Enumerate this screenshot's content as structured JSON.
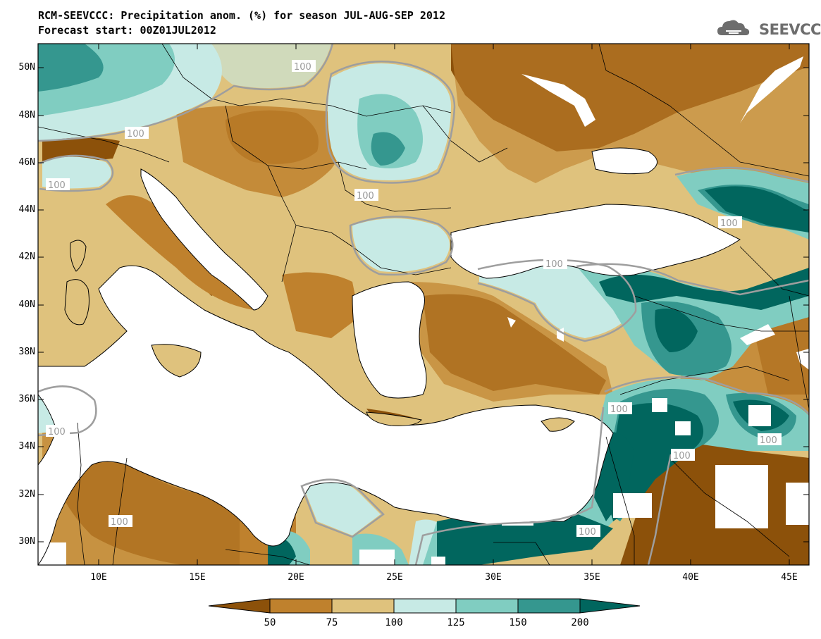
{
  "title_line1": "RCM-SEEVCCC: Precipitation anom. (%) for season JUL-AUG-SEP 2012",
  "title_line2": "Forecast start: 00Z01JUL2012",
  "logo": {
    "text": "SEEVCCC",
    "icon": "cloud-icon"
  },
  "map": {
    "lat_labels": [
      "50N",
      "48N",
      "46N",
      "44N",
      "42N",
      "40N",
      "38N",
      "36N",
      "34N",
      "32N",
      "30N"
    ],
    "lon_labels": [
      "10E",
      "15E",
      "20E",
      "25E",
      "30E",
      "35E",
      "40E",
      "45E"
    ],
    "contour_label": "100"
  },
  "colorbar": {
    "tick_labels": [
      "50",
      "75",
      "100",
      "125",
      "150",
      "200"
    ],
    "colors": [
      "#8c510a",
      "#bf812d",
      "#dfc27d",
      "#c7eae5",
      "#80cdc1",
      "#35978f",
      "#01665e"
    ]
  }
}
